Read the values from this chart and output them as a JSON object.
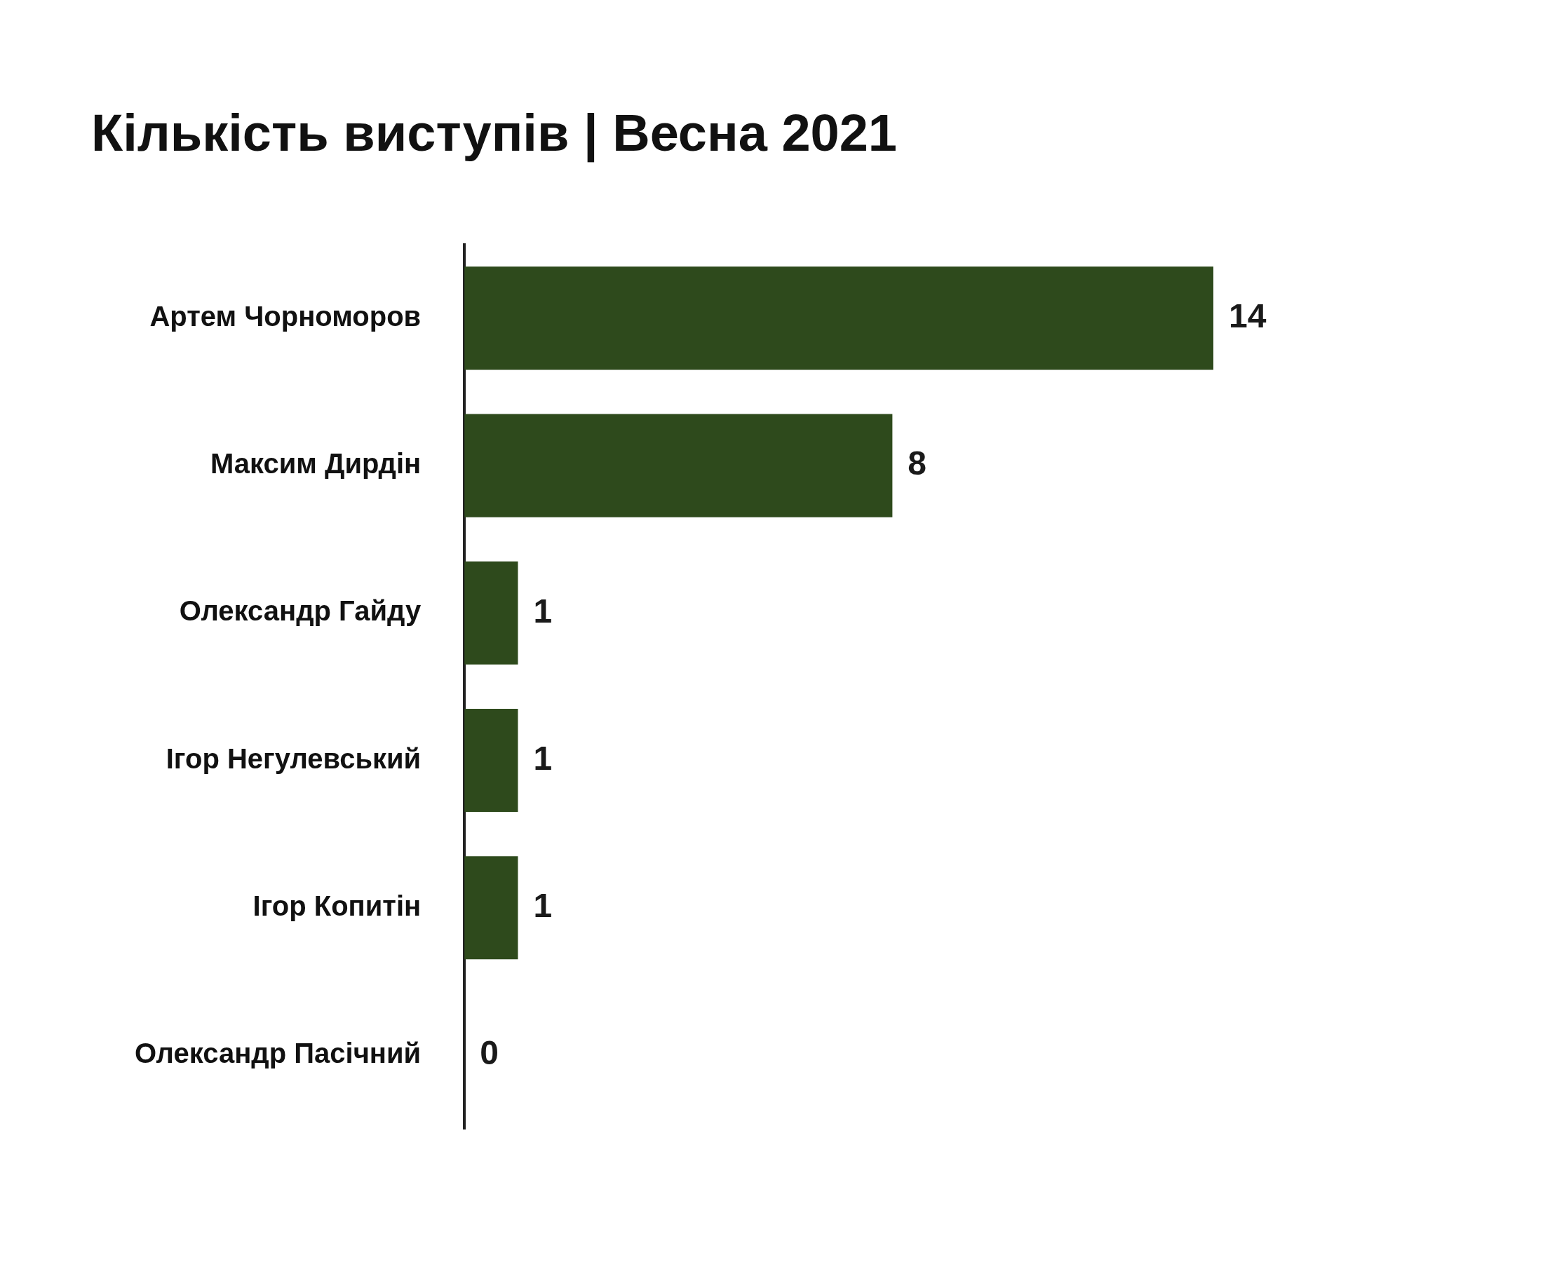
{
  "chart_data": {
    "type": "bar",
    "orientation": "horizontal",
    "title": "Кількість виступів | Весна 2021",
    "categories": [
      "Артем Чорноморов",
      "Максим Дирдін",
      "Олександр Гайду",
      "Ігор Негулевський",
      "Ігор Копитін",
      "Олександр Пасічний"
    ],
    "values": [
      14,
      8,
      1,
      1,
      1,
      0
    ],
    "color": "#2e4a1c",
    "data_labels": true
  }
}
